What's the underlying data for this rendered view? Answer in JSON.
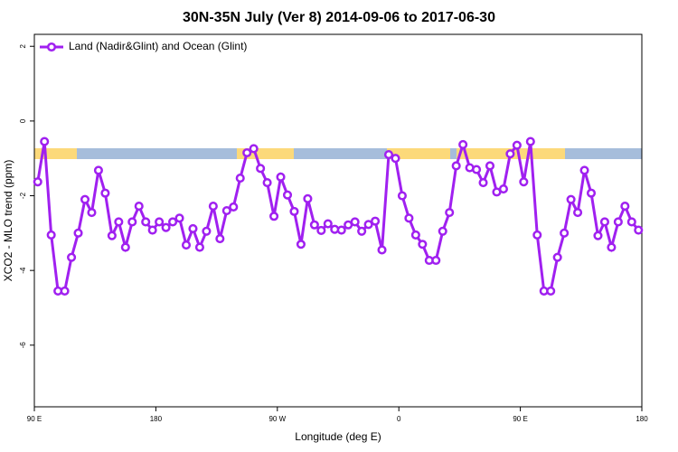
{
  "chart_data": {
    "type": "line",
    "title": "30N-35N July (Ver 8)   2014-09-06 to 2017-06-30",
    "x_label": "Longitude (deg E)",
    "y_label": "XCO2 - MLO trend (ppm)",
    "legend_position": "top-left",
    "grid": false,
    "xlim": [
      90,
      540
    ],
    "ylim": [
      -7.65,
      2.32
    ],
    "xticks": [
      {
        "value": 90,
        "label": "90 E"
      },
      {
        "value": 180,
        "label": "180"
      },
      {
        "value": 270,
        "label": "90 W"
      },
      {
        "value": 360,
        "label": "0"
      },
      {
        "value": 450,
        "label": "90 E"
      },
      {
        "value": 540,
        "label": "180"
      }
    ],
    "yticks": [
      2,
      0,
      -2,
      -4,
      -6
    ],
    "x": [
      92.5,
      97.5,
      102.5,
      107.5,
      112.5,
      117.5,
      122.5,
      127.5,
      132.5,
      137.5,
      142.5,
      147.5,
      152.5,
      157.5,
      162.5,
      167.5,
      172.5,
      177.5,
      182.5,
      187.5,
      192.5,
      197.5,
      202.5,
      207.5,
      212.5,
      217.5,
      222.5,
      227.5,
      232.5,
      237.5,
      242.5,
      247.5,
      252.5,
      257.5,
      262.5,
      267.5,
      272.5,
      277.5,
      282.5,
      287.5,
      292.5,
      297.5,
      302.5,
      307.5,
      312.5,
      317.5,
      322.5,
      327.5,
      332.5,
      337.5,
      342.5,
      347.5,
      352.5,
      357.5,
      362.5,
      367.5,
      372.5,
      377.5,
      382.5,
      387.5,
      392.5,
      397.5,
      402.5,
      407.5,
      412.5,
      417.5,
      422.5,
      427.5,
      432.5,
      437.5,
      442.5,
      447.5,
      452.5,
      457.5,
      462.5,
      467.5,
      472.5,
      477.5,
      482.5,
      487.5,
      492.5,
      497.5,
      502.5,
      507.5,
      512.5,
      517.5,
      522.5,
      527.5,
      532.5,
      537.5
    ],
    "series": [
      {
        "name": "Land (Nadir&Glint) and Ocean (Glint)",
        "color": "#a020f0",
        "values": [
          -1.63,
          -0.55,
          -3.05,
          -4.55,
          -4.55,
          -3.65,
          -3.0,
          -2.1,
          -2.45,
          -1.32,
          -1.93,
          -3.07,
          -2.7,
          -3.38,
          -2.7,
          -2.28,
          -2.7,
          -2.92,
          -2.7,
          -2.85,
          -2.7,
          -2.6,
          -3.32,
          -2.88,
          -3.38,
          -2.95,
          -2.28,
          -3.15,
          -2.4,
          -2.3,
          -1.53,
          -0.85,
          -0.74,
          -1.27,
          -1.65,
          -2.55,
          -1.5,
          -1.98,
          -2.42,
          -3.3,
          -2.08,
          -2.78,
          -2.93,
          -2.75,
          -2.9,
          -2.92,
          -2.78,
          -2.7,
          -2.95,
          -2.77,
          -2.68,
          -3.45,
          -0.9,
          -1.0,
          -2.0,
          -2.6,
          -3.05,
          -3.3,
          -3.73,
          -3.73,
          -2.95,
          -2.45,
          -1.2,
          -0.63,
          -1.25,
          -1.3,
          -1.65,
          -1.2,
          -1.9,
          -1.82,
          -0.88,
          -0.65,
          -1.63,
          -0.55,
          -3.05,
          -4.55,
          -4.55,
          -3.65,
          -3.0,
          -2.1,
          -2.45,
          -1.32,
          -1.93,
          -3.07,
          -2.7,
          -3.38,
          -2.7,
          -2.28,
          -2.7,
          -2.92
        ]
      }
    ]
  }
}
